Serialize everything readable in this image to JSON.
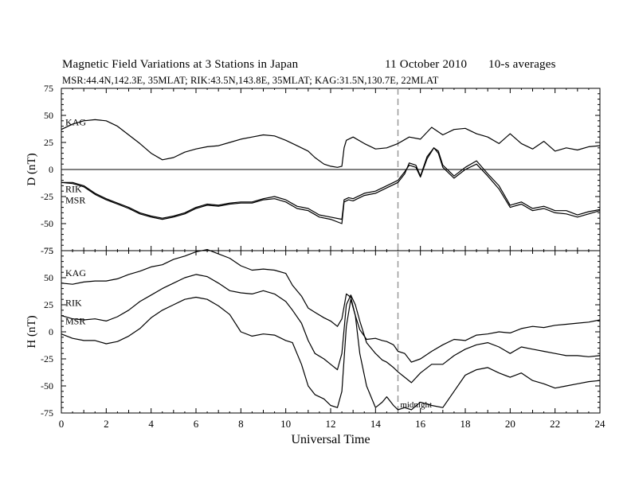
{
  "header": {
    "title": "Magnetic Field Variations at 3 Stations in Japan",
    "date": "11  October 2010",
    "averaging": "10-s averages",
    "stations_line": "MSR:44.4N,142.3E, 35MLAT;   RIK:43.5N,143.8E, 35MLAT;   KAG:31.5N,130.7E, 22MLAT"
  },
  "chart_data": [
    {
      "type": "line",
      "panel": "D",
      "ylabel": "D (nT)",
      "xlim": [
        0,
        24
      ],
      "ylim": [
        -75,
        75
      ],
      "yticks": [
        75,
        50,
        25,
        0,
        -25,
        -50,
        -75
      ],
      "zero_line": true,
      "marker_line_x": 15,
      "series": [
        {
          "name": "KAG",
          "x": [
            0,
            0.5,
            1,
            1.5,
            2,
            2.5,
            3,
            3.5,
            4,
            4.5,
            5,
            5.5,
            6,
            6.5,
            7,
            7.5,
            8,
            8.5,
            9,
            9.5,
            10,
            10.5,
            11,
            11.3,
            11.7,
            12,
            12.3,
            12.5,
            12.6,
            12.7,
            13,
            13.5,
            14,
            14.5,
            15,
            15.5,
            16,
            16.5,
            17,
            17.5,
            18,
            18.5,
            19,
            19.5,
            20,
            20.5,
            21,
            21.5,
            22,
            22.5,
            23,
            23.5,
            24
          ],
          "y": [
            37,
            42,
            45,
            46,
            45,
            40,
            32,
            24,
            15,
            9,
            11,
            16,
            19,
            21,
            22,
            25,
            28,
            30,
            32,
            31,
            27,
            22,
            17,
            11,
            5,
            3,
            2,
            3,
            20,
            27,
            30,
            24,
            19,
            20,
            24,
            30,
            28,
            39,
            32,
            37,
            38,
            33,
            30,
            24,
            33,
            24,
            19,
            26,
            17,
            20,
            18,
            21,
            22
          ]
        },
        {
          "name": "RIK",
          "x": [
            0,
            0.5,
            1,
            1.5,
            2,
            2.5,
            3,
            3.5,
            4,
            4.5,
            5,
            5.5,
            6,
            6.5,
            7,
            7.5,
            8,
            8.5,
            9,
            9.5,
            10,
            10.5,
            11,
            11.5,
            12,
            12.5,
            12.6,
            12.8,
            13,
            13.5,
            14,
            14.5,
            15,
            15.3,
            15.5,
            15.8,
            16,
            16.3,
            16.6,
            16.8,
            17,
            17.5,
            18,
            18.5,
            19,
            19.5,
            20,
            20.5,
            21,
            21.5,
            22,
            22.5,
            23,
            23.5,
            24
          ],
          "y": [
            -12,
            -12,
            -15,
            -22,
            -27,
            -31,
            -35,
            -40,
            -43,
            -45,
            -43,
            -40,
            -35,
            -32,
            -33,
            -31,
            -30,
            -30,
            -27,
            -25,
            -28,
            -34,
            -36,
            -42,
            -44,
            -46,
            -28,
            -26,
            -27,
            -22,
            -20,
            -15,
            -10,
            -2,
            4,
            2,
            -7,
            10,
            20,
            17,
            4,
            -6,
            2,
            8,
            -4,
            -15,
            -33,
            -30,
            -36,
            -34,
            -38,
            -38,
            -42,
            -39,
            -37
          ]
        },
        {
          "name": "MSR",
          "x": [
            0,
            0.5,
            1,
            1.5,
            2,
            2.5,
            3,
            3.5,
            4,
            4.5,
            5,
            5.5,
            6,
            6.5,
            7,
            7.5,
            8,
            8.5,
            9,
            9.5,
            10,
            10.5,
            11,
            11.5,
            12,
            12.5,
            12.6,
            12.8,
            13,
            13.5,
            14,
            14.5,
            15,
            15.3,
            15.5,
            15.8,
            16,
            16.3,
            16.6,
            16.8,
            17,
            17.5,
            18,
            18.5,
            19,
            19.5,
            20,
            20.5,
            21,
            21.5,
            22,
            22.5,
            23,
            23.5,
            24
          ],
          "y": [
            -12,
            -13,
            -16,
            -23,
            -28,
            -32,
            -36,
            -41,
            -44,
            -46,
            -44,
            -41,
            -36,
            -33,
            -34,
            -32,
            -31,
            -31,
            -28,
            -27,
            -30,
            -36,
            -38,
            -44,
            -46,
            -50,
            -30,
            -28,
            -29,
            -24,
            -22,
            -17,
            -12,
            -4,
            6,
            4,
            -6,
            12,
            20,
            15,
            2,
            -8,
            0,
            5,
            -6,
            -18,
            -35,
            -32,
            -38,
            -36,
            -40,
            -41,
            -44,
            -41,
            -38
          ]
        }
      ],
      "annotations": [
        "KAG",
        "RIK",
        "MSR"
      ]
    },
    {
      "type": "line",
      "panel": "H",
      "ylabel": "H (nT)",
      "xlabel": "Universal Time",
      "xlim": [
        0,
        24
      ],
      "ylim": [
        -75,
        75
      ],
      "xticks": [
        0,
        2,
        4,
        6,
        8,
        10,
        12,
        14,
        16,
        18,
        20,
        22,
        24
      ],
      "yticks": [
        75,
        50,
        25,
        0,
        -25,
        -50,
        -75
      ],
      "marker_line_x": 15,
      "series": [
        {
          "name": "KAG",
          "x": [
            0,
            0.5,
            1,
            1.5,
            2,
            2.5,
            3,
            3.5,
            4,
            4.5,
            5,
            5.5,
            6,
            6.5,
            7,
            7.5,
            8,
            8.5,
            9,
            9.5,
            10,
            10.3,
            10.7,
            11,
            11.3,
            11.7,
            12,
            12.3,
            12.5,
            12.7,
            12.9,
            13.1,
            13.3,
            13.6,
            14,
            14.3,
            14.5,
            14.8,
            15,
            15.3,
            15.6,
            16,
            16.5,
            17,
            17.5,
            18,
            18.5,
            19,
            19.5,
            20,
            20.5,
            21,
            21.5,
            22,
            22.5,
            23,
            23.5,
            24
          ],
          "y": [
            45,
            44,
            46,
            47,
            47,
            49,
            53,
            56,
            60,
            62,
            67,
            70,
            74,
            76,
            72,
            68,
            61,
            57,
            58,
            57,
            54,
            43,
            33,
            22,
            18,
            13,
            10,
            5,
            12,
            35,
            32,
            15,
            2,
            -7,
            -6,
            -8,
            -9,
            -12,
            -18,
            -20,
            -28,
            -25,
            -18,
            -12,
            -7,
            -8,
            -3,
            -2,
            0,
            -1,
            3,
            5,
            4,
            6,
            7,
            8,
            9,
            11
          ]
        },
        {
          "name": "RIK",
          "x": [
            0,
            0.5,
            1,
            1.5,
            2,
            2.5,
            3,
            3.5,
            4,
            4.5,
            5,
            5.5,
            6,
            6.5,
            7,
            7.5,
            8,
            8.5,
            9,
            9.5,
            10,
            10.3,
            10.7,
            11,
            11.3,
            11.7,
            12,
            12.3,
            12.5,
            12.7,
            12.9,
            13.1,
            13.3,
            13.6,
            14,
            14.3,
            14.5,
            14.8,
            15,
            15.3,
            15.6,
            16,
            16.5,
            17,
            17.5,
            18,
            18.5,
            19,
            19.5,
            20,
            20.5,
            21,
            21.5,
            22,
            22.5,
            23,
            23.5,
            24
          ],
          "y": [
            15,
            12,
            11,
            12,
            10,
            14,
            20,
            28,
            34,
            40,
            45,
            50,
            53,
            51,
            45,
            38,
            36,
            35,
            38,
            35,
            28,
            20,
            8,
            -8,
            -20,
            -25,
            -30,
            -35,
            -20,
            25,
            34,
            25,
            10,
            -10,
            -20,
            -26,
            -28,
            -33,
            -37,
            -42,
            -47,
            -38,
            -30,
            -30,
            -22,
            -16,
            -12,
            -10,
            -14,
            -20,
            -14,
            -16,
            -18,
            -20,
            -22,
            -22,
            -23,
            -22
          ]
        },
        {
          "name": "MSR",
          "x": [
            0,
            0.5,
            1,
            1.5,
            2,
            2.5,
            3,
            3.5,
            4,
            4.5,
            5,
            5.5,
            6,
            6.5,
            7,
            7.5,
            8,
            8.5,
            9,
            9.5,
            10,
            10.3,
            10.7,
            11,
            11.3,
            11.7,
            12,
            12.3,
            12.5,
            12.7,
            12.9,
            13.1,
            13.3,
            13.6,
            14,
            14.3,
            14.5,
            14.8,
            15,
            15.3,
            15.6,
            16,
            16.5,
            17,
            17.5,
            18,
            18.5,
            19,
            19.5,
            20,
            20.5,
            21,
            21.5,
            22,
            22.5,
            23,
            23.5,
            24
          ],
          "y": [
            -2,
            -6,
            -8,
            -8,
            -11,
            -9,
            -4,
            3,
            13,
            20,
            25,
            30,
            32,
            30,
            24,
            16,
            0,
            -4,
            -2,
            -3,
            -8,
            -10,
            -30,
            -50,
            -58,
            -62,
            -68,
            -70,
            -55,
            5,
            30,
            15,
            -20,
            -50,
            -70,
            -65,
            -60,
            -68,
            -72,
            -70,
            -72,
            -65,
            -68,
            -70,
            -55,
            -40,
            -35,
            -33,
            -38,
            -42,
            -38,
            -45,
            -48,
            -52,
            -50,
            -48,
            -46,
            -45
          ]
        }
      ],
      "annotations": [
        "KAG",
        "RIK",
        "MSR",
        "midnight"
      ]
    }
  ]
}
